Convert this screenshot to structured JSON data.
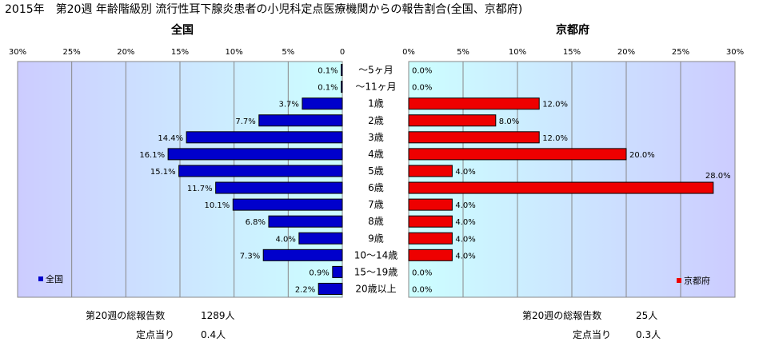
{
  "chart_data": {
    "type": "bar",
    "orientation": "horizontal-butterfly",
    "title": "2015年　第20週 年齢階級別 流行性耳下腺炎患者の小児科定点医療機関からの報告割合(全国、京都府)",
    "categories": [
      "～5ヶ月",
      "～11ヶ月",
      "1歳",
      "2歳",
      "3歳",
      "4歳",
      "5歳",
      "6歳",
      "7歳",
      "8歳",
      "9歳",
      "10～14歳",
      "15～19歳",
      "20歳以上"
    ],
    "xlim": [
      0,
      30
    ],
    "x_ticks": [
      "0%",
      "5%",
      "10%",
      "15%",
      "20%",
      "25%",
      "30%"
    ],
    "left_x_ticks": [
      "30%",
      "25%",
      "20%",
      "15%",
      "10%",
      "5%",
      "0"
    ],
    "grid": true,
    "series": [
      {
        "name": "全国",
        "side": "left",
        "color": "#0000cc",
        "values": [
          0.1,
          0.1,
          3.7,
          7.7,
          14.4,
          16.1,
          15.1,
          11.7,
          10.1,
          6.8,
          4.0,
          7.3,
          0.9,
          2.2
        ],
        "labels": [
          "0.1%",
          "0.1%",
          "3.7%",
          "7.7%",
          "14.4%",
          "16.1%",
          "15.1%",
          "11.7%",
          "10.1%",
          "6.8%",
          "4.0%",
          "7.3%",
          "0.9%",
          "2.2%"
        ],
        "legend": "bottom-left"
      },
      {
        "name": "京都府",
        "side": "right",
        "color": "#ee0000",
        "values": [
          0.0,
          0.0,
          12.0,
          8.0,
          12.0,
          20.0,
          4.0,
          28.0,
          4.0,
          4.0,
          4.0,
          4.0,
          0.0,
          0.0
        ],
        "labels": [
          "0.0%",
          "0.0%",
          "12.0%",
          "8.0%",
          "12.0%",
          "20.0%",
          "4.0%",
          "28.0%",
          "4.0%",
          "4.0%",
          "4.0%",
          "4.0%",
          "0.0%",
          "0.0%"
        ],
        "legend": "bottom-right"
      }
    ]
  },
  "panels": {
    "left_title": "全国",
    "right_title": "京都府"
  },
  "footer": {
    "national_total_label": "第20週の総報告数",
    "national_total_value": "1289人",
    "national_per_label": "定点当り",
    "national_per_value": "0.4人",
    "kyoto_total_label": "第20週の総報告数",
    "kyoto_total_value": "25人",
    "kyoto_per_label": "定点当り",
    "kyoto_per_value": "0.3人"
  },
  "colors": {
    "plot_bg": "#ccccff",
    "plot_bg_light": "#ccffff",
    "national_bar": "#0000cc",
    "kyoto_bar": "#ee0000",
    "grid": "#888888"
  }
}
